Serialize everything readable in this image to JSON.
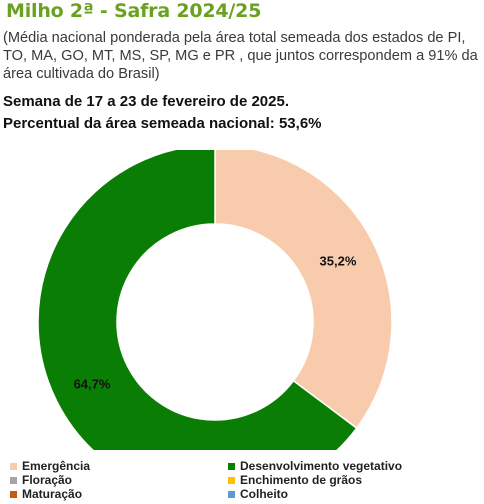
{
  "header": {
    "title": "Milho 2ª - Safra 2024/25",
    "subtitle": "(Média nacional ponderada pela área total semeada dos estados de PI, TO, MA, GO, MT, MS, SP, MG e PR , que juntos correspondem a 91% da área cultivada do Brasil)",
    "week": "Semana de 17 a 23 de fevereiro de 2025.",
    "percent_line": "Percentual da área semeada nacional: 53,6%"
  },
  "chart_data": {
    "type": "pie",
    "variant": "donut",
    "title": "Milho 2ª - Safra 2024/25",
    "categories": [
      "Emergência",
      "Desenvolvimento vegetativo",
      "Floração",
      "Enchimento de grãos",
      "Maturação",
      "Colheito"
    ],
    "values": [
      35.2,
      64.7,
      0,
      0,
      0,
      0
    ],
    "data_labels": [
      "35,2%",
      "64,7%",
      "",
      "",
      "",
      ""
    ],
    "colors": [
      "#f8cbad",
      "#0a7d05",
      "#a5a5a5",
      "#ffc000",
      "#c55a11",
      "#5b9bd5"
    ],
    "legend_position": "bottom"
  }
}
